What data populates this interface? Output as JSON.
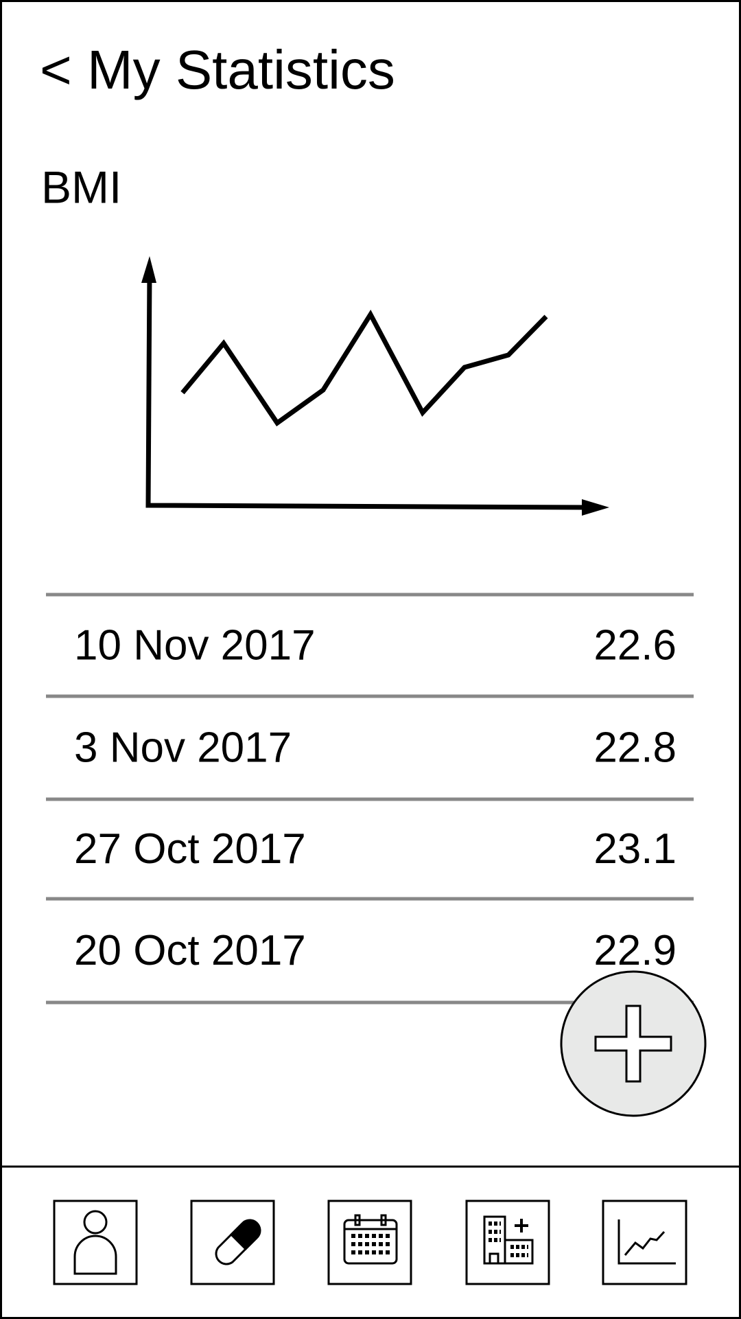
{
  "header": {
    "title": "< My Statistics"
  },
  "section": {
    "title": "BMI"
  },
  "table": {
    "rows": [
      [
        "10 Nov 2017",
        "22.6"
      ],
      [
        "3 Nov 2017",
        "22.8"
      ],
      [
        "27 Oct 2017",
        "23.1"
      ],
      [
        "20 Oct 2017",
        "22.9"
      ]
    ]
  }
}
